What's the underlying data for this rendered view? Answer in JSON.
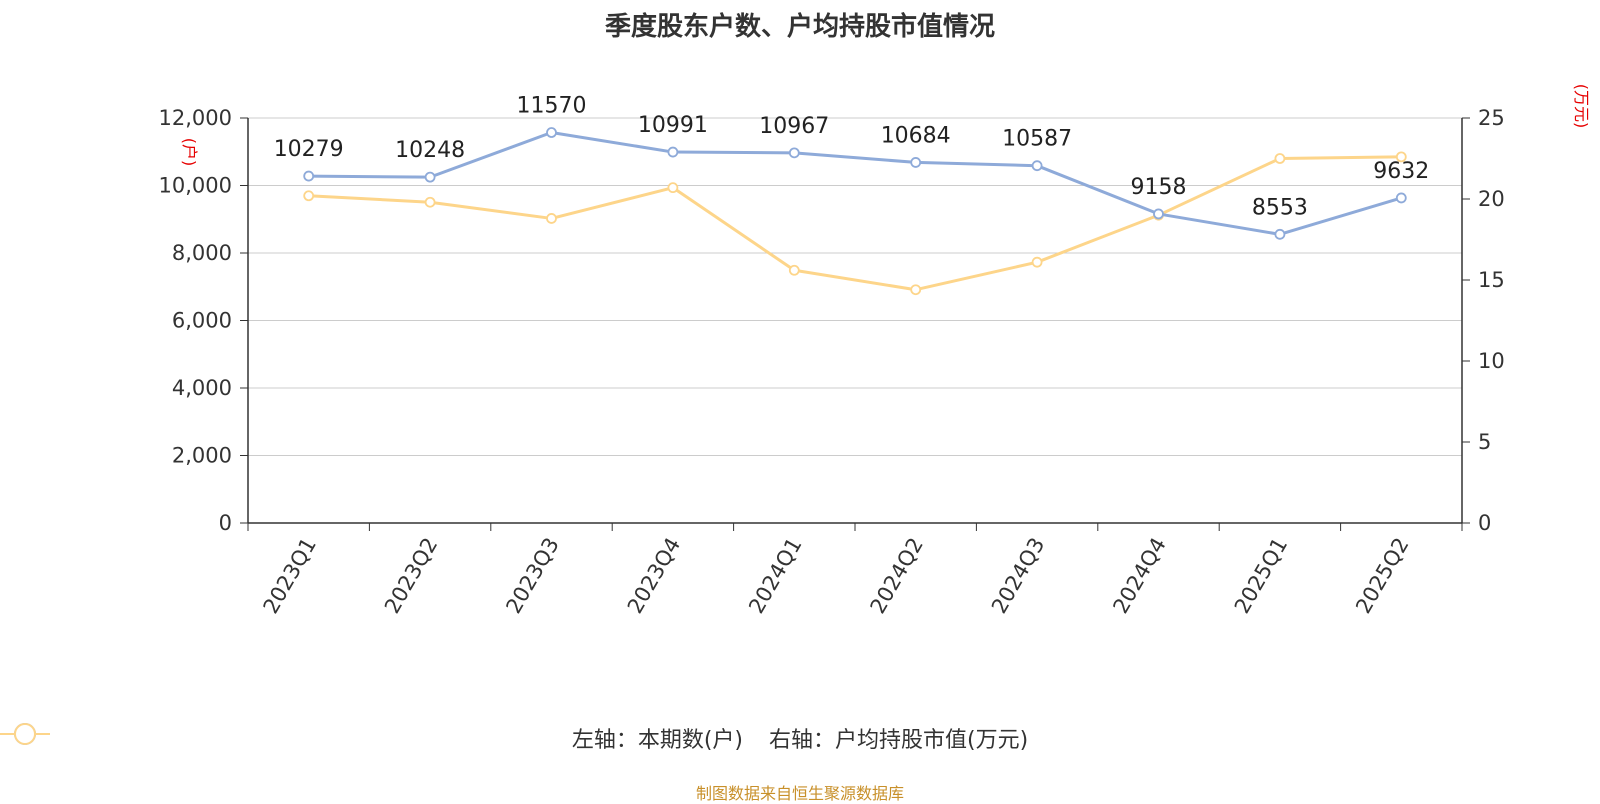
{
  "title": "季度股东户数、户均持股市值情况",
  "source": "制图数据来自恒生聚源数据库",
  "colors": {
    "left": "#8eaad9",
    "right": "#fdd58a",
    "unit": "#e60000",
    "grid": "#cccccc",
    "source": "#c8902a"
  },
  "chart_data": {
    "type": "line",
    "categories": [
      "2023Q1",
      "2023Q2",
      "2023Q3",
      "2023Q4",
      "2024Q1",
      "2024Q2",
      "2024Q3",
      "2024Q4",
      "2025Q1",
      "2025Q2"
    ],
    "series": [
      {
        "name": "左轴：本期数(户)",
        "axis": "left",
        "values": [
          10279,
          10248,
          11570,
          10991,
          10967,
          10684,
          10587,
          9158,
          8553,
          9632
        ]
      },
      {
        "name": "右轴：户均持股市值(万元)",
        "axis": "right",
        "values": [
          20.2,
          19.8,
          18.8,
          20.7,
          15.6,
          14.4,
          16.1,
          19.0,
          22.5,
          22.6
        ]
      }
    ],
    "y_left": {
      "unit": "(户)",
      "min": 0,
      "max": 12000,
      "ticks": [
        "0",
        "2,000",
        "4,000",
        "6,000",
        "8,000",
        "10,000",
        "12,000"
      ]
    },
    "y_right": {
      "unit": "(万元)",
      "min": 0,
      "max": 25,
      "ticks": [
        "0",
        "5",
        "10",
        "15",
        "20",
        "25"
      ]
    },
    "grid": true,
    "legend_position": "bottom-center",
    "data_labels": "left-series"
  }
}
